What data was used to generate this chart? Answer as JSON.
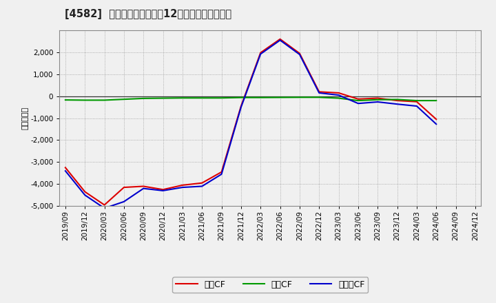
{
  "title": "[4582]  キャッシュフローの12か月移動合計の推移",
  "ylabel": "（百万円）",
  "background_color": "#f0f0f0",
  "plot_bg_color": "#f0f0f0",
  "grid_color": "#999999",
  "x_labels": [
    "2019/09",
    "2019/12",
    "2020/03",
    "2020/06",
    "2020/09",
    "2020/12",
    "2021/03",
    "2021/06",
    "2021/09",
    "2021/12",
    "2022/03",
    "2022/06",
    "2022/09",
    "2022/12",
    "2023/03",
    "2023/06",
    "2023/09",
    "2023/12",
    "2024/03",
    "2024/06",
    "2024/09",
    "2024/12"
  ],
  "operating_cf": [
    -3250,
    -4350,
    -4950,
    -4150,
    -4100,
    -4250,
    -4050,
    -3950,
    -3450,
    -450,
    1980,
    2600,
    1950,
    200,
    150,
    -130,
    -90,
    -200,
    -250,
    -1050,
    null,
    null
  ],
  "investing_cf": [
    -170,
    -180,
    -180,
    -140,
    -100,
    -90,
    -80,
    -80,
    -80,
    -60,
    -60,
    -55,
    -50,
    -50,
    -90,
    -200,
    -160,
    -150,
    -200,
    -200,
    null,
    null
  ],
  "free_cf": [
    -3400,
    -4500,
    -5100,
    -4800,
    -4200,
    -4300,
    -4150,
    -4100,
    -3550,
    -500,
    1920,
    2550,
    1900,
    150,
    50,
    -330,
    -260,
    -360,
    -450,
    -1270,
    null,
    null
  ],
  "operating_color": "#dd0000",
  "investing_color": "#009900",
  "free_cf_color": "#0000cc",
  "ylim": [
    -5000,
    3000
  ],
  "yticks": [
    -5000,
    -4000,
    -3000,
    -2000,
    -1000,
    0,
    1000,
    2000
  ],
  "legend_labels": [
    "営業CF",
    "投資CF",
    "フリーCF"
  ]
}
